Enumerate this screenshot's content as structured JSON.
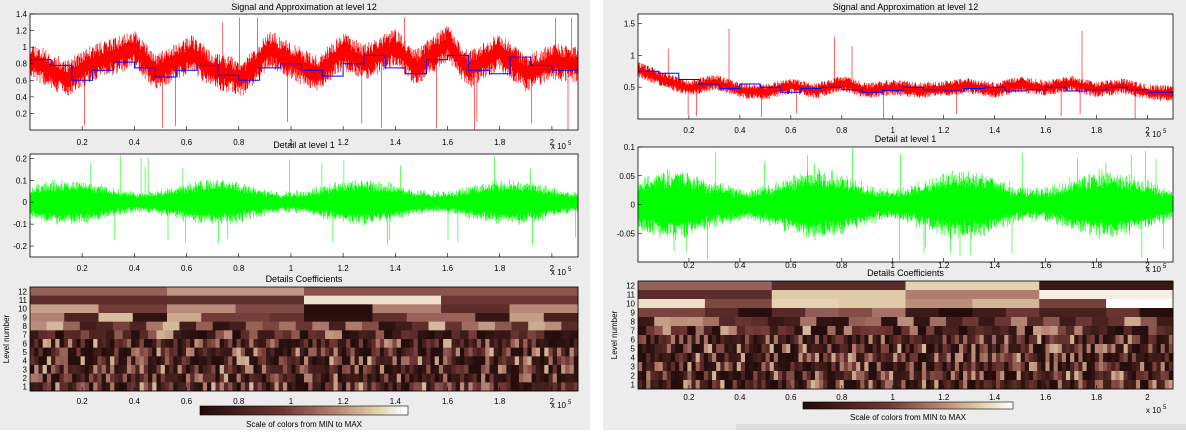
{
  "panels": [
    {
      "id": "left",
      "signal_title": "Signal and Approximation at level 12",
      "detail_title": "Detail at level 1",
      "coef_title": "Details Coefficients",
      "colorbar_label": "Scale of colors from MIN to MAX",
      "level_axis_label": "Level number",
      "x_multiplier": "x 10",
      "x_exponent": "5"
    },
    {
      "id": "right",
      "signal_title": "Signal and Approximation at level 12",
      "detail_title": "Detail at level 1",
      "coef_title": "Details Coefficients",
      "colorbar_label": "Scale of colors from MIN to MAX",
      "level_axis_label": "Level number",
      "x_multiplier": "x 10",
      "x_exponent": "5"
    }
  ],
  "colors": {
    "signal": "#ff0000",
    "approximation": "#0000ff",
    "detail": "#00ff00",
    "coef_dark": "#2a1210",
    "coef_light": "#ffffff",
    "background": "#ececec"
  },
  "chart_data": [
    {
      "panel": "left",
      "charts": [
        {
          "type": "line",
          "title": "Signal and Approximation at level 12",
          "xlim": [
            0,
            210000
          ],
          "ylim": [
            0,
            1.4
          ],
          "xticks": [
            0.2,
            0.4,
            0.6,
            0.8,
            1,
            1.2,
            1.4,
            1.6,
            1.8,
            2
          ],
          "yticks": [
            0.2,
            0.4,
            0.6,
            0.8,
            1,
            1.2,
            1.4
          ],
          "series": [
            {
              "role": "signal",
              "color": "#ff0000",
              "x": [
                0,
                14000,
                22000,
                40000,
                48000,
                62000,
                70000,
                82000,
                92000,
                102000,
                110000,
                120000,
                128000,
                140000,
                148000,
                160000,
                168000,
                180000,
                190000,
                200000,
                210000
              ],
              "y": [
                0.85,
                0.62,
                0.78,
                0.98,
                0.7,
                0.92,
                0.72,
                0.63,
                0.98,
                0.8,
                0.68,
                0.95,
                0.82,
                1.0,
                0.75,
                1.05,
                0.72,
                0.95,
                0.68,
                0.82,
                0.8
              ]
            },
            {
              "role": "approximation",
              "color": "#0000ff",
              "x": [
                0,
                8000,
                16000,
                24000,
                32000,
                40000,
                48000,
                56000,
                64000,
                72000,
                80000,
                88000,
                96000,
                104000,
                112000,
                120000,
                128000,
                136000,
                144000,
                152000,
                160000,
                168000,
                176000,
                184000,
                192000,
                200000,
                210000
              ],
              "y": [
                0.85,
                0.78,
                0.6,
                0.72,
                0.82,
                0.75,
                0.64,
                0.72,
                0.78,
                0.66,
                0.6,
                0.75,
                0.8,
                0.72,
                0.65,
                0.8,
                0.9,
                0.75,
                0.68,
                0.85,
                0.9,
                0.72,
                0.68,
                0.88,
                0.78,
                0.72,
                0.72
              ]
            }
          ]
        },
        {
          "type": "line",
          "title": "Detail at level 1",
          "xlim": [
            0,
            210000
          ],
          "ylim": [
            -0.25,
            0.22
          ],
          "xticks": [
            0.2,
            0.4,
            0.6,
            0.8,
            1,
            1.2,
            1.4,
            1.6,
            1.8,
            2
          ],
          "yticks": [
            -0.2,
            -0.1,
            0,
            0.1,
            0.2
          ],
          "series": [
            {
              "role": "detail",
              "color": "#00ff00",
              "amplitude": 0.06
            }
          ]
        },
        {
          "type": "heatmap",
          "title": "Details Coefficients",
          "ylabel": "Level number",
          "xlim": [
            0,
            210000
          ],
          "xticks": [
            0.2,
            0.4,
            0.6,
            0.8,
            1,
            1.2,
            1.4,
            1.6,
            1.8,
            2
          ],
          "yticks": [
            1,
            2,
            3,
            4,
            5,
            6,
            7,
            8,
            9,
            10,
            11,
            12
          ],
          "colorbar": "Scale of colors from MIN to MAX"
        }
      ]
    },
    {
      "panel": "right",
      "charts": [
        {
          "type": "line",
          "title": "Signal and Approximation at level 12",
          "xlim": [
            0,
            210000
          ],
          "ylim": [
            0,
            1.65
          ],
          "xticks": [
            0.2,
            0.4,
            0.6,
            0.8,
            1,
            1.2,
            1.4,
            1.6,
            1.8,
            2
          ],
          "yticks": [
            0.5,
            1,
            1.5
          ],
          "series": [
            {
              "role": "signal",
              "color": "#ff0000",
              "x": [
                0,
                10000,
                20000,
                30000,
                40000,
                50000,
                60000,
                70000,
                80000,
                90000,
                100000,
                110000,
                120000,
                130000,
                140000,
                150000,
                160000,
                170000,
                180000,
                190000,
                200000,
                210000
              ],
              "y": [
                0.78,
                0.62,
                0.48,
                0.58,
                0.45,
                0.42,
                0.52,
                0.44,
                0.56,
                0.44,
                0.5,
                0.45,
                0.48,
                0.52,
                0.45,
                0.55,
                0.48,
                0.56,
                0.46,
                0.52,
                0.42,
                0.4
              ]
            },
            {
              "role": "approximation",
              "color": "#0000ff",
              "x": [
                0,
                8000,
                16000,
                24000,
                32000,
                40000,
                48000,
                56000,
                64000,
                72000,
                80000,
                88000,
                96000,
                104000,
                112000,
                120000,
                128000,
                136000,
                144000,
                152000,
                160000,
                168000,
                176000,
                184000,
                192000,
                200000,
                210000
              ],
              "y": [
                0.75,
                0.72,
                0.62,
                0.55,
                0.48,
                0.55,
                0.5,
                0.42,
                0.48,
                0.5,
                0.46,
                0.42,
                0.45,
                0.5,
                0.46,
                0.44,
                0.48,
                0.5,
                0.44,
                0.46,
                0.5,
                0.44,
                0.46,
                0.5,
                0.46,
                0.42,
                0.42
              ]
            }
          ]
        },
        {
          "type": "line",
          "title": "Detail at level 1",
          "xlim": [
            0,
            210000
          ],
          "ylim": [
            -0.1,
            0.1
          ],
          "xticks": [
            0.2,
            0.4,
            0.6,
            0.8,
            1,
            1.2,
            1.4,
            1.6,
            1.8,
            2
          ],
          "yticks": [
            -0.05,
            0,
            0.05,
            0.1
          ],
          "series": [
            {
              "role": "detail",
              "color": "#00ff00",
              "amplitude": 0.035
            }
          ]
        },
        {
          "type": "heatmap",
          "title": "Details Coefficients",
          "ylabel": "Level number",
          "xlim": [
            0,
            210000
          ],
          "xticks": [
            0.2,
            0.4,
            0.6,
            0.8,
            1,
            1.2,
            1.4,
            1.6,
            1.8,
            2
          ],
          "yticks": [
            1,
            2,
            3,
            4,
            5,
            6,
            7,
            8,
            9,
            10,
            11,
            12
          ],
          "colorbar": "Scale of colors from MIN to MAX"
        }
      ]
    }
  ]
}
